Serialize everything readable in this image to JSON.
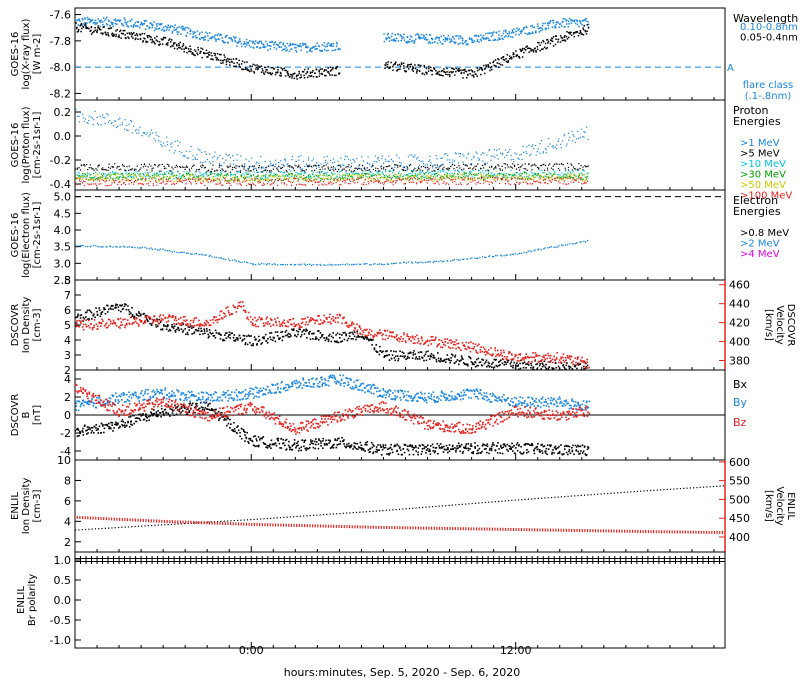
{
  "figure": {
    "xlabel": "hours:minutes, Sep.  5, 2020 - Sep.  6, 2020",
    "xticks": [
      {
        "t": 0,
        "label": "0:00"
      },
      {
        "t": 12,
        "label": "12:00"
      }
    ],
    "x_range_hours": [
      -8.0,
      21.5
    ]
  },
  "colors": {
    "black": "#000000",
    "blue": "#1a86e0",
    "green": "#00a000",
    "cyan": "#00c8e8",
    "yellow": "#c8c800",
    "orange": "#ff9000",
    "red": "#e8201c",
    "magenta": "#e000e0",
    "axis_red": "#e8201c"
  },
  "panels": [
    {
      "id": "xray",
      "ylabel": [
        "GOES-16",
        "log(X-ray flux)",
        "[W m-2]"
      ],
      "yticks": [
        "-7.6",
        "-7.8",
        "-8.0",
        "-8.2"
      ],
      "ylim": [
        -8.25,
        -7.55
      ],
      "legend_title": [
        "Wavelength"
      ],
      "legend": [
        {
          "text": "0.10-0.8nm",
          "color": "blue"
        },
        {
          "text": "0.05-0.4nm",
          "color": "black"
        }
      ],
      "side_label_A": "A",
      "flare_class_label": [
        "flare class",
        "(.1-.8nm)"
      ],
      "threshold": -8.0
    },
    {
      "id": "proton",
      "ylabel": [
        "GOES-16",
        "log(Proton flux)",
        "[cm-2s-1sr-1]"
      ],
      "yticks": [
        "0.2",
        "0.0",
        "-0.2",
        "-0.4"
      ],
      "ylim": [
        -0.45,
        0.3
      ],
      "legend_title": [
        "Proton",
        "Energies"
      ],
      "legend": [
        {
          "text": ">1 MeV",
          "color": "blue"
        },
        {
          "text": ">5 MeV",
          "color": "black"
        },
        {
          "text": ">10 MeV",
          "color": "cyan"
        },
        {
          "text": ">30 MeV",
          "color": "green"
        },
        {
          "text": ">50 MeV",
          "color": "yellow"
        },
        {
          "text": ">100 MeV",
          "color": "red"
        }
      ]
    },
    {
      "id": "electron",
      "ylabel": [
        "GOES-16",
        "log(Electron flux)",
        "[cm-2s-1sr-1]"
      ],
      "yticks": [
        "5.0",
        "4.5",
        "4.0",
        "3.5",
        "3.0",
        "2.5"
      ],
      "ylim": [
        2.5,
        5.2
      ],
      "legend_title": [
        "Electron",
        "Energies"
      ],
      "legend": [
        {
          "text": ">0.8 MeV",
          "color": "black"
        },
        {
          "text": ">2 MeV",
          "color": "blue"
        },
        {
          "text": ">4 MeV",
          "color": "magenta"
        }
      ],
      "threshold": 5.0
    },
    {
      "id": "dscovr_plasma",
      "ylabel": [
        "DSCOVR",
        "Ion Density",
        "[cm-3]"
      ],
      "yticks": [
        "8",
        "7",
        "6",
        "5",
        "4",
        "3",
        "2"
      ],
      "ylim": [
        2,
        8
      ],
      "right_ylabel": [
        "DSCOVR",
        "Velocity",
        "[km/s]"
      ],
      "right_yticks": [
        "460",
        "440",
        "420",
        "400",
        "380"
      ],
      "right_ylim": [
        370,
        465
      ]
    },
    {
      "id": "dscovr_mag",
      "ylabel": [
        "DSCOVR",
        "B",
        "[nT]"
      ],
      "yticks": [
        "4",
        "2",
        "0",
        "-2",
        "-4"
      ],
      "ylim": [
        -5,
        5
      ],
      "legend": [
        {
          "text": "Bx",
          "color": "black"
        },
        {
          "text": "By",
          "color": "blue"
        },
        {
          "text": "Bz",
          "color": "red"
        }
      ]
    },
    {
      "id": "enlil_plasma",
      "ylabel": [
        "ENLIL",
        "Ion Density",
        "[cm-3]"
      ],
      "yticks": [
        "10",
        "8",
        "6",
        "4",
        "2"
      ],
      "ylim": [
        1,
        10
      ],
      "right_ylabel": [
        "ENLIL",
        "Velocity",
        "[km/s]"
      ],
      "right_yticks": [
        "600",
        "550",
        "500",
        "450",
        "400"
      ],
      "right_ylim": [
        360,
        605
      ]
    },
    {
      "id": "enlil_polarity",
      "ylabel": [
        "ENLIL",
        "Br polarity"
      ],
      "yticks": [
        "1.0",
        "0.5",
        "0.0",
        "-0.5",
        "-1.0"
      ],
      "ylim": [
        -1.2,
        1.2
      ]
    }
  ],
  "chart_data": [
    {
      "type": "scatter",
      "panel": "xray",
      "x_units": "hours from Sep 5 00:00",
      "series": [
        {
          "name": "0.10-0.8nm",
          "color": "blue",
          "x": [
            -8,
            -6,
            -4,
            -2,
            0,
            2,
            4,
            5,
            6,
            8,
            10,
            12,
            14,
            15.3
          ],
          "y": [
            -7.65,
            -7.65,
            -7.69,
            -7.76,
            -7.82,
            -7.85,
            -7.83,
            null,
            -7.77,
            -7.78,
            -7.79,
            -7.73,
            -7.66,
            -7.66
          ]
        },
        {
          "name": "0.05-0.4nm",
          "color": "black",
          "x": [
            -8,
            -6,
            -4,
            -2,
            0,
            2,
            4,
            5,
            6,
            8,
            10,
            12,
            14,
            15.3
          ],
          "y": [
            -7.69,
            -7.74,
            -7.8,
            -7.9,
            -8.0,
            -8.05,
            -8.02,
            null,
            -7.98,
            -8.02,
            -8.05,
            -7.9,
            -7.78,
            -7.7
          ]
        }
      ]
    },
    {
      "type": "scatter",
      "panel": "proton",
      "series": [
        {
          "name": ">1 MeV",
          "color": "blue",
          "x": [
            -8,
            -6,
            -4,
            -2,
            0,
            4,
            8,
            12,
            15.3
          ],
          "y": [
            0.18,
            0.12,
            -0.05,
            -0.18,
            -0.22,
            -0.22,
            -0.21,
            -0.15,
            0.03
          ]
        },
        {
          "name": ">5 MeV",
          "color": "black",
          "x": [
            -8,
            0,
            8,
            15.3
          ],
          "y": [
            -0.25,
            -0.27,
            -0.26,
            -0.25
          ]
        },
        {
          "name": ">10 MeV",
          "color": "cyan",
          "x": [
            -8,
            0,
            8,
            15.3
          ],
          "y": [
            -0.32,
            -0.32,
            -0.31,
            -0.31
          ]
        },
        {
          "name": ">30 MeV",
          "color": "green",
          "x": [
            -8,
            0,
            8,
            15.3
          ],
          "y": [
            -0.33,
            -0.34,
            -0.33,
            -0.33
          ]
        },
        {
          "name": ">50 MeV",
          "color": "yellow",
          "x": [
            -8,
            0,
            8,
            15.3
          ],
          "y": [
            -0.34,
            -0.35,
            -0.34,
            -0.34
          ]
        },
        {
          "name": ">100 MeV",
          "color": "red",
          "x": [
            -8,
            0,
            8,
            15.3
          ],
          "y": [
            -0.38,
            -0.38,
            -0.37,
            -0.37
          ]
        }
      ]
    },
    {
      "type": "scatter",
      "panel": "electron",
      "series": [
        {
          "name": ">2 MeV",
          "color": "blue",
          "x": [
            -8,
            -5,
            -2,
            0,
            3,
            6,
            9,
            12,
            15.3
          ],
          "y": [
            3.55,
            3.5,
            3.25,
            3.0,
            2.97,
            3.0,
            3.1,
            3.3,
            3.7
          ]
        }
      ]
    },
    {
      "type": "scatter",
      "panel": "dscovr_plasma",
      "series": [
        {
          "name": "Ion Density",
          "color": "black",
          "axis": "left",
          "x": [
            -8,
            -6,
            -4,
            -2,
            0,
            2,
            4,
            5,
            6,
            8,
            10,
            12,
            14,
            15.3
          ],
          "y": [
            5.5,
            6.3,
            5.0,
            4.5,
            4.0,
            4.5,
            4.2,
            4.5,
            3.0,
            3.0,
            2.6,
            2.4,
            2.3,
            2.2
          ]
        },
        {
          "name": "Velocity",
          "color": "red",
          "axis": "right",
          "x": [
            -8,
            -6,
            -4,
            -2,
            -0.5,
            0,
            2,
            4,
            5,
            6,
            8,
            10,
            12,
            14,
            15.3
          ],
          "y": [
            418,
            420,
            425,
            420,
            440,
            422,
            420,
            426,
            410,
            408,
            402,
            395,
            384,
            384,
            377
          ]
        }
      ]
    },
    {
      "type": "scatter",
      "panel": "dscovr_mag",
      "series": [
        {
          "name": "Bx",
          "color": "black",
          "x": [
            -8,
            -6,
            -4,
            -2,
            0,
            2,
            4,
            6,
            8,
            10,
            12,
            14,
            15.3
          ],
          "y": [
            -1.8,
            -1.0,
            0.5,
            1.0,
            -2.8,
            -3.3,
            -3.0,
            -3.8,
            -3.7,
            -3.6,
            -3.6,
            -3.8,
            -3.8
          ]
        },
        {
          "name": "By",
          "color": "blue",
          "x": [
            -8,
            -6,
            -4,
            -2,
            0,
            2,
            4,
            6,
            8,
            10,
            12,
            14,
            15.3
          ],
          "y": [
            1.0,
            2.0,
            2.5,
            2.0,
            2.5,
            3.5,
            4.0,
            2.5,
            2.0,
            2.5,
            1.5,
            1.5,
            1.0
          ]
        },
        {
          "name": "Bz",
          "color": "red",
          "x": [
            -8,
            -6,
            -4,
            -2,
            0,
            2,
            4,
            6,
            8,
            10,
            12,
            14,
            15.3
          ],
          "y": [
            3.0,
            0.5,
            1.5,
            0.0,
            1.0,
            -1.5,
            0.0,
            1.0,
            -1.0,
            -1.5,
            0.5,
            0.0,
            0.5
          ]
        }
      ]
    },
    {
      "type": "line",
      "panel": "enlil_plasma",
      "series": [
        {
          "name": "Velocity",
          "color": "black",
          "axis": "right",
          "x": [
            -8,
            0,
            6,
            12,
            18,
            21.5
          ],
          "y": [
            420,
            448,
            472,
            500,
            525,
            538
          ]
        },
        {
          "name": "Ion Density",
          "color": "red",
          "axis": "left",
          "x": [
            -8,
            -4,
            0,
            6,
            12,
            18,
            21.5
          ],
          "y": [
            4.4,
            4.0,
            3.7,
            3.4,
            3.2,
            3.0,
            2.9
          ]
        }
      ]
    },
    {
      "type": "line",
      "panel": "enlil_polarity",
      "series": [
        {
          "name": "Br polarity",
          "color": "black",
          "x": [
            -8,
            21.5
          ],
          "y": [
            1.0,
            1.0
          ]
        }
      ]
    }
  ]
}
